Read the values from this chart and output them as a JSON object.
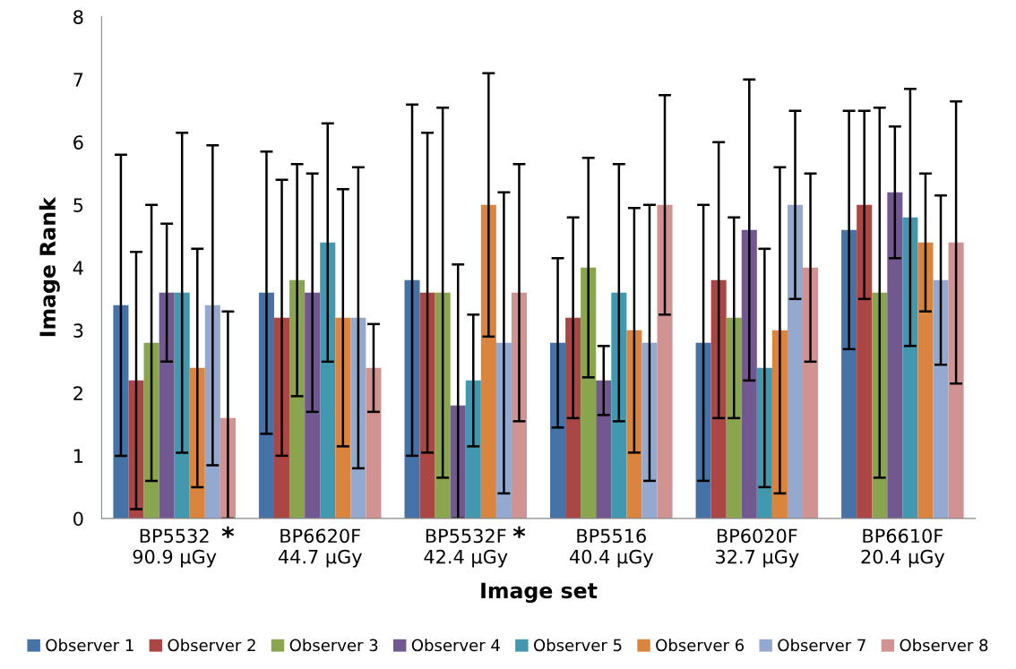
{
  "chart_data": {
    "type": "bar",
    "xlabel": "Image set",
    "ylabel": "Image Rank",
    "categories": [
      "BP5532\n90.9 µGy",
      "BP6620F\n44.7 µGy",
      "BP5532F\n42.4 µGy",
      "BP5516\n40.4 µGy",
      "BP6020F\n32.7 µGy",
      "BP6610F\n20.4 µGy"
    ],
    "series": [
      {
        "name": "Observer 1",
        "color": "#4572a7",
        "values": [
          3.4,
          3.6,
          3.8,
          2.8,
          2.8,
          4.6
        ],
        "errors": [
          2.4,
          2.25,
          2.8,
          1.35,
          2.2,
          1.9
        ]
      },
      {
        "name": "Observer 2",
        "color": "#aa4643",
        "values": [
          2.2,
          3.2,
          3.6,
          3.2,
          3.8,
          5.0
        ],
        "errors": [
          2.05,
          2.2,
          2.55,
          1.6,
          2.2,
          1.5
        ]
      },
      {
        "name": "Observer 3",
        "color": "#89a54e",
        "values": [
          2.8,
          3.8,
          3.6,
          4.0,
          3.2,
          3.6
        ],
        "errors": [
          2.2,
          1.85,
          2.95,
          1.75,
          1.6,
          2.95
        ]
      },
      {
        "name": "Observer 4",
        "color": "#71588f",
        "values": [
          3.6,
          3.6,
          1.8,
          2.2,
          4.6,
          5.2
        ],
        "errors": [
          1.1,
          1.9,
          [
            0,
            4.05
          ],
          0.55,
          2.4,
          1.05
        ]
      },
      {
        "name": "Observer 5",
        "color": "#4198af",
        "values": [
          3.6,
          4.4,
          2.2,
          3.6,
          2.4,
          4.8
        ],
        "errors": [
          2.55,
          1.9,
          1.05,
          2.05,
          1.9,
          2.05
        ]
      },
      {
        "name": "Observer 6",
        "color": "#db843d",
        "values": [
          2.4,
          3.2,
          5.0,
          3.0,
          3.0,
          4.4
        ],
        "errors": [
          1.9,
          2.05,
          2.1,
          1.95,
          2.6,
          1.1
        ]
      },
      {
        "name": "Observer 7",
        "color": "#93a9cf",
        "values": [
          3.4,
          3.2,
          2.8,
          2.8,
          5.0,
          3.8
        ],
        "errors": [
          2.55,
          2.4,
          2.4,
          2.2,
          1.5,
          1.35
        ]
      },
      {
        "name": "Observer 8",
        "color": "#d19392",
        "values": [
          1.6,
          2.4,
          3.6,
          5.0,
          4.0,
          4.4
        ],
        "errors": [
          [
            0,
            3.3
          ],
          0.7,
          2.05,
          1.75,
          1.5,
          2.25
        ]
      }
    ],
    "ylim": [
      0,
      8
    ],
    "yticks": [
      0,
      1,
      2,
      3,
      4,
      5,
      6,
      7,
      8
    ],
    "annotations": [
      "*",
      "*"
    ],
    "grid": false,
    "legend": "bottom"
  }
}
